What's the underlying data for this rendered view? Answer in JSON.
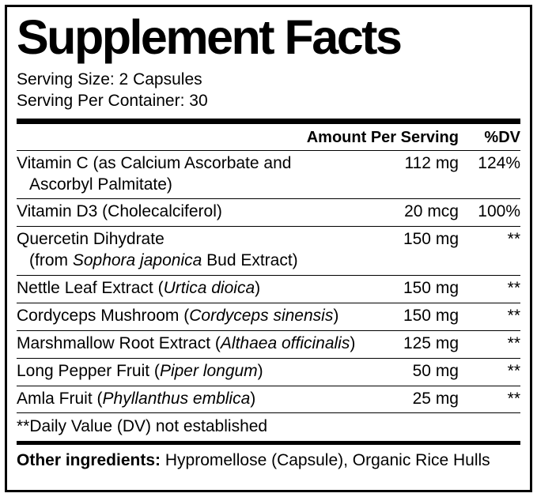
{
  "title": "Supplement Facts",
  "serving": {
    "size": "Serving Size: 2 Capsules",
    "per_container": "Serving Per Container: 30"
  },
  "header": {
    "amount": "Amount Per Serving",
    "dv": "%DV"
  },
  "rows": [
    {
      "lines": [
        [
          {
            "t": "Vitamin C (as Calcium Ascorbate and"
          }
        ],
        [
          {
            "t": "Ascorbyl Palmitate)"
          }
        ]
      ],
      "amount": "112 mg",
      "dv": "124%"
    },
    {
      "lines": [
        [
          {
            "t": "Vitamin D3 (Cholecalciferol)"
          }
        ]
      ],
      "amount": "20 mcg",
      "dv": "100%"
    },
    {
      "lines": [
        [
          {
            "t": "Quercetin Dihydrate"
          }
        ],
        [
          {
            "t": "(from "
          },
          {
            "t": "Sophora japonica",
            "i": true
          },
          {
            "t": " Bud Extract)"
          }
        ]
      ],
      "amount": "150 mg",
      "dv": "**"
    },
    {
      "lines": [
        [
          {
            "t": "Nettle Leaf Extract ("
          },
          {
            "t": "Urtica dioica",
            "i": true
          },
          {
            "t": ")"
          }
        ]
      ],
      "amount": "150 mg",
      "dv": "**"
    },
    {
      "lines": [
        [
          {
            "t": "Cordyceps Mushroom ("
          },
          {
            "t": "Cordyceps sinensis",
            "i": true
          },
          {
            "t": ")"
          }
        ]
      ],
      "amount": "150 mg",
      "dv": "**"
    },
    {
      "lines": [
        [
          {
            "t": "Marshmallow Root Extract ("
          },
          {
            "t": "Althaea officinalis",
            "i": true
          },
          {
            "t": ")"
          }
        ]
      ],
      "amount": "125 mg",
      "dv": "**"
    },
    {
      "lines": [
        [
          {
            "t": "Long Pepper Fruit ("
          },
          {
            "t": "Piper longum",
            "i": true
          },
          {
            "t": ")"
          }
        ]
      ],
      "amount": "50 mg",
      "dv": "**"
    },
    {
      "lines": [
        [
          {
            "t": "Amla Fruit ("
          },
          {
            "t": "Phyllanthus emblica",
            "i": true
          },
          {
            "t": ")"
          }
        ]
      ],
      "amount": "25 mg",
      "dv": "**"
    }
  ],
  "footnote": "**Daily Value (DV) not established",
  "other_ingredients": {
    "label": "Other ingredients:",
    "text": " Hypromellose (Capsule), Organic Rice Hulls"
  },
  "colors": {
    "ink": "#000000",
    "background": "#ffffff"
  }
}
